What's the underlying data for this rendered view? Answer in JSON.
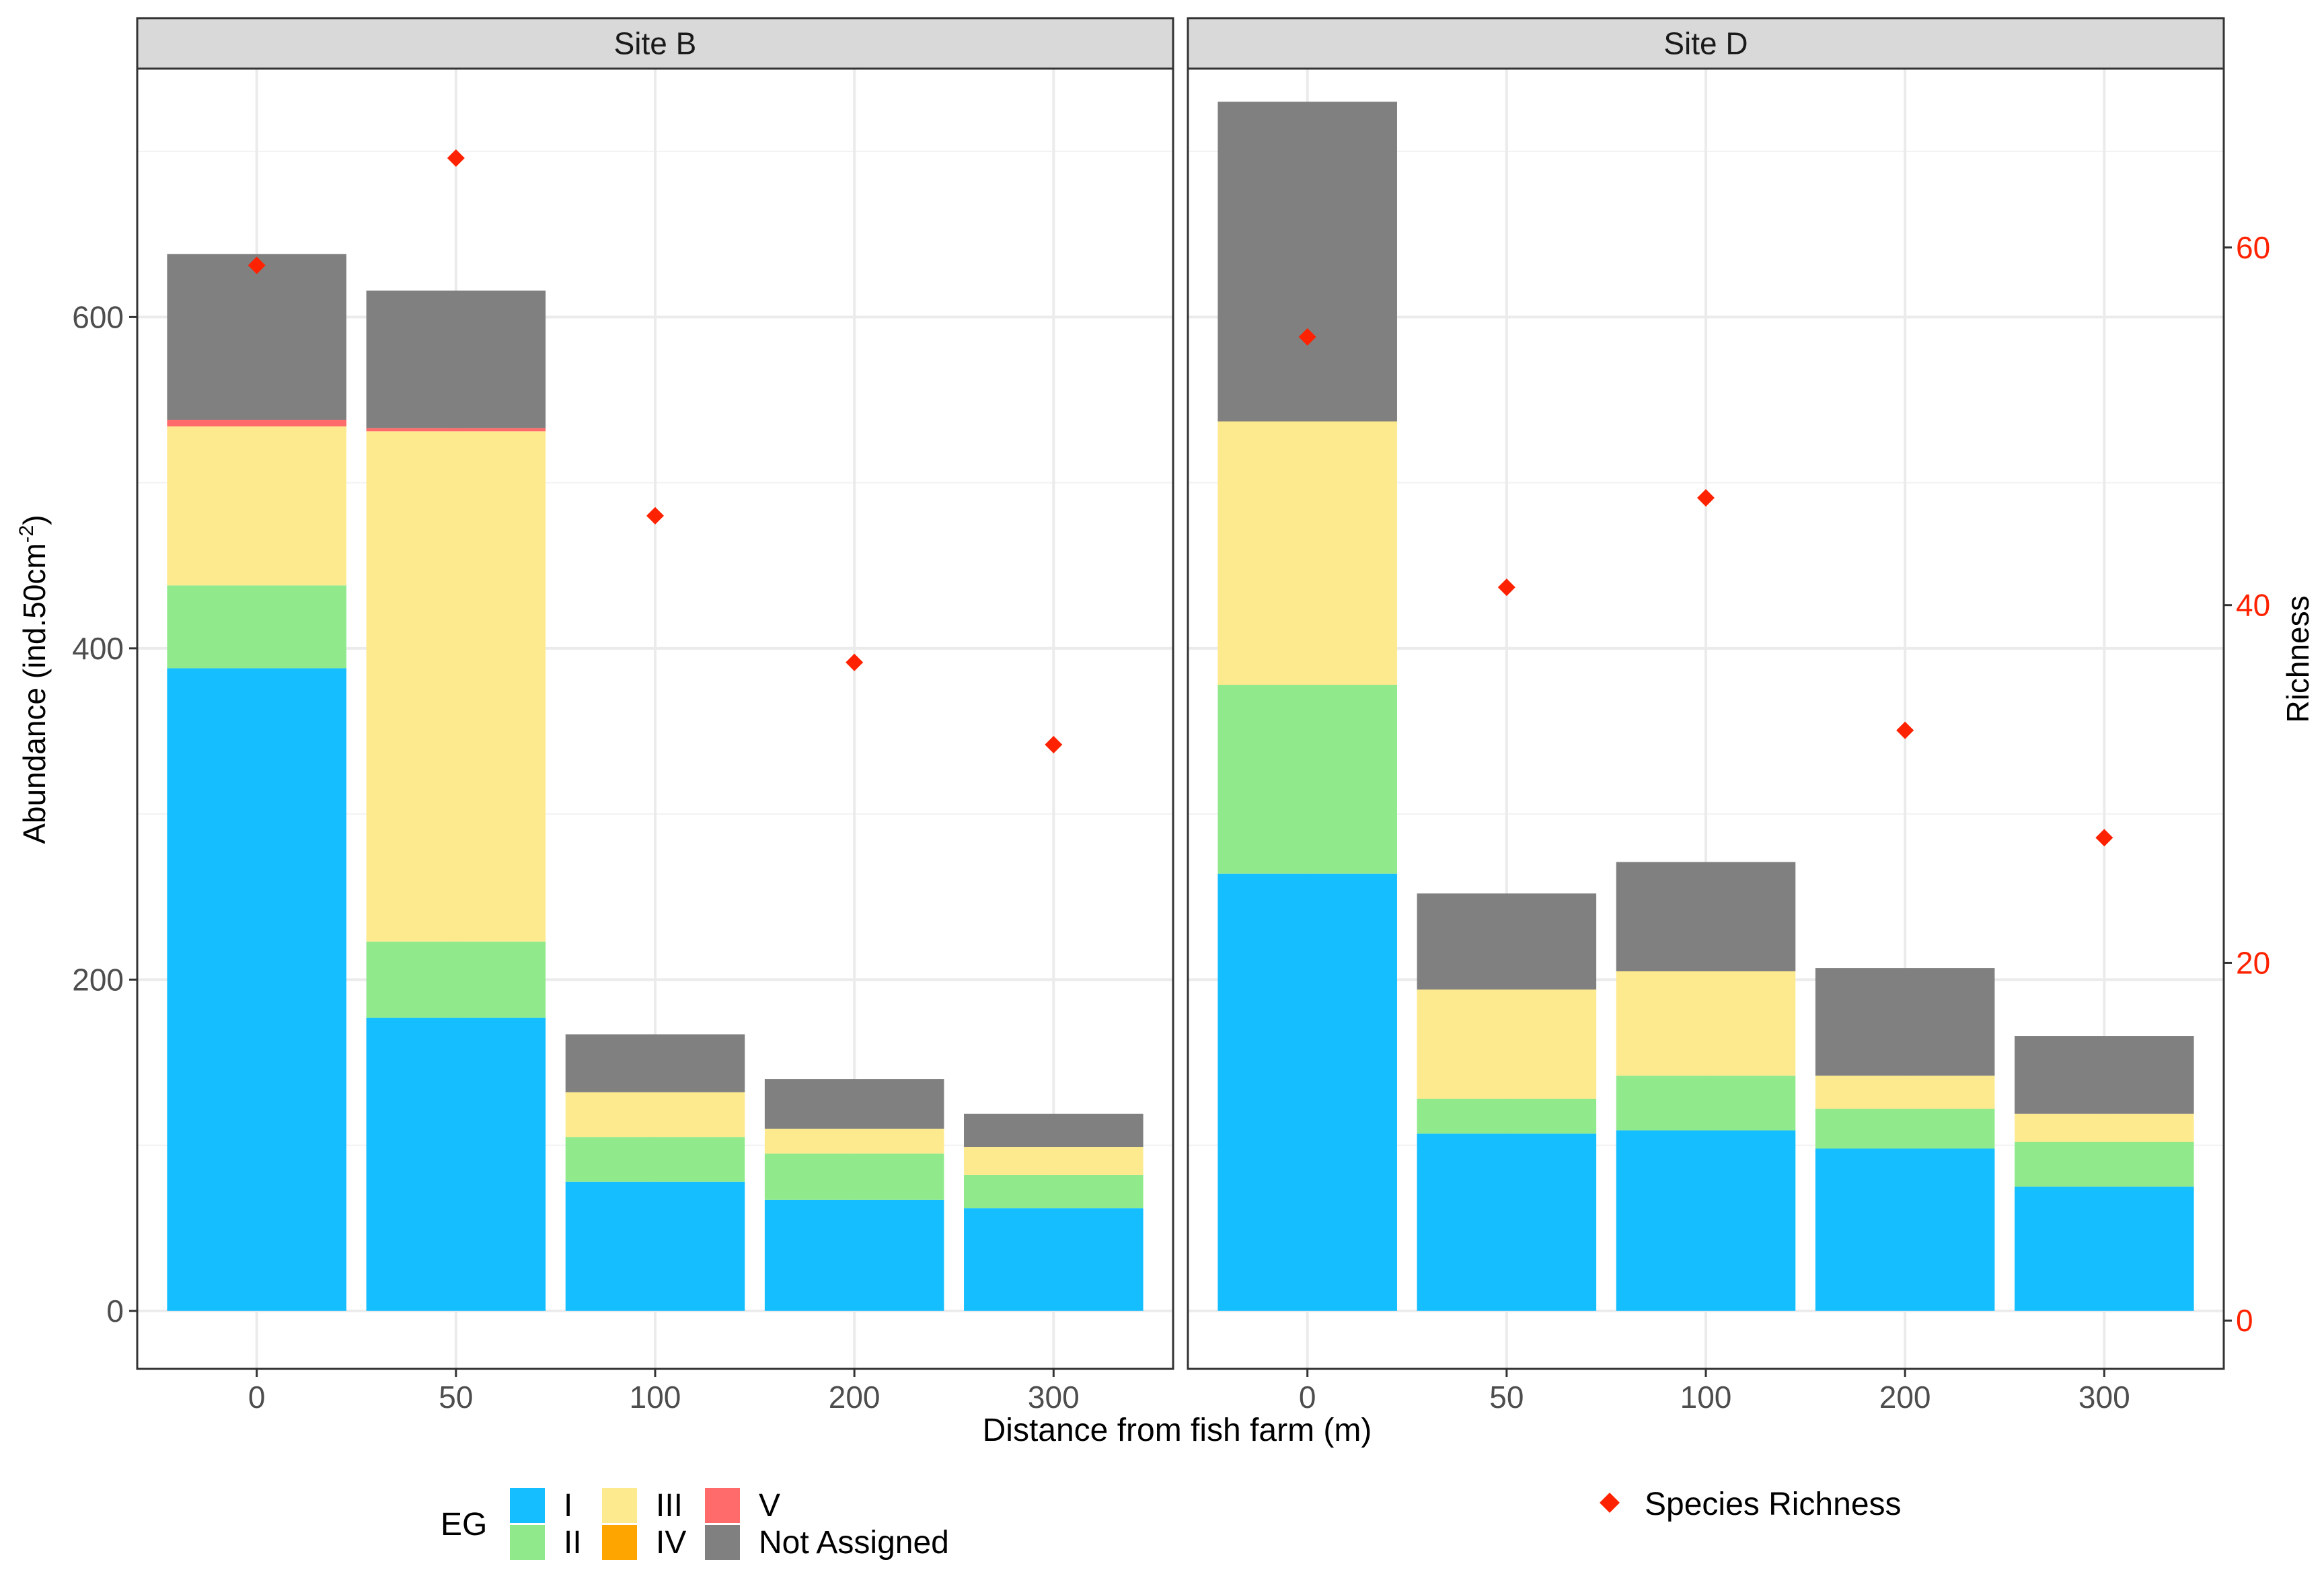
{
  "chart_data": {
    "type": "bar",
    "stacked": true,
    "xlabel": "Distance from fish farm (m)",
    "ylabel": "Abundance (ind.50cm",
    "ylabel_sup": "-2",
    "ylabel_close": ")",
    "y2label": "Richness",
    "ylim": [
      -35,
      750
    ],
    "y2lim": [
      -2.7,
      70
    ],
    "yticks": [
      0,
      200,
      400,
      600
    ],
    "y2ticks": [
      0,
      20,
      40,
      60
    ],
    "categories": [
      "0",
      "50",
      "100",
      "200",
      "300"
    ],
    "categories_display": [
      "0",
      "50",
      "100",
      "200",
      "300"
    ],
    "legend": {
      "title": "EG",
      "items": [
        {
          "key": "I",
          "label": "I",
          "color": "#14BEFF"
        },
        {
          "key": "II",
          "label": "II",
          "color": "#90EA8C"
        },
        {
          "key": "III",
          "label": "III",
          "color": "#FEEA8E"
        },
        {
          "key": "IV",
          "label": "IV",
          "color": "#FFA500"
        },
        {
          "key": "V",
          "label": "V",
          "color": "#FF6B6B"
        },
        {
          "key": "NA",
          "label": "Not Assigned",
          "color": "#808080"
        }
      ],
      "richness_label": "Species Richness",
      "richness_color": "#FF2200"
    },
    "panels": [
      {
        "title": "Site B",
        "stacks": [
          {
            "I": 388,
            "II": 50,
            "III": 96,
            "IV": 0,
            "V": 4,
            "NA": 100
          },
          {
            "I": 177,
            "II": 46,
            "III": 308,
            "IV": 0,
            "V": 2,
            "NA": 83
          },
          {
            "I": 78,
            "II": 27,
            "III": 27,
            "IV": 0,
            "V": 0,
            "NA": 35
          },
          {
            "I": 67,
            "II": 28,
            "III": 15,
            "IV": 0,
            "V": 0,
            "NA": 30
          },
          {
            "I": 62,
            "II": 20,
            "III": 17,
            "IV": 0,
            "V": 0,
            "NA": 20
          }
        ],
        "richness": [
          59,
          65,
          45,
          36.8,
          32.2
        ]
      },
      {
        "title": "Site D",
        "stacks": [
          {
            "I": 264,
            "II": 114,
            "III": 159,
            "IV": 0,
            "V": 0,
            "NA": 193
          },
          {
            "I": 107,
            "II": 21,
            "III": 66,
            "IV": 0,
            "V": 0,
            "NA": 58
          },
          {
            "I": 109,
            "II": 33,
            "III": 63,
            "IV": 0,
            "V": 0,
            "NA": 66
          },
          {
            "I": 98,
            "II": 24,
            "III": 20,
            "IV": 0,
            "V": 0,
            "NA": 65
          },
          {
            "I": 75,
            "II": 27,
            "III": 17,
            "IV": 0,
            "V": 0,
            "NA": 47
          }
        ],
        "richness": [
          55,
          41,
          46,
          33,
          27
        ]
      }
    ]
  }
}
